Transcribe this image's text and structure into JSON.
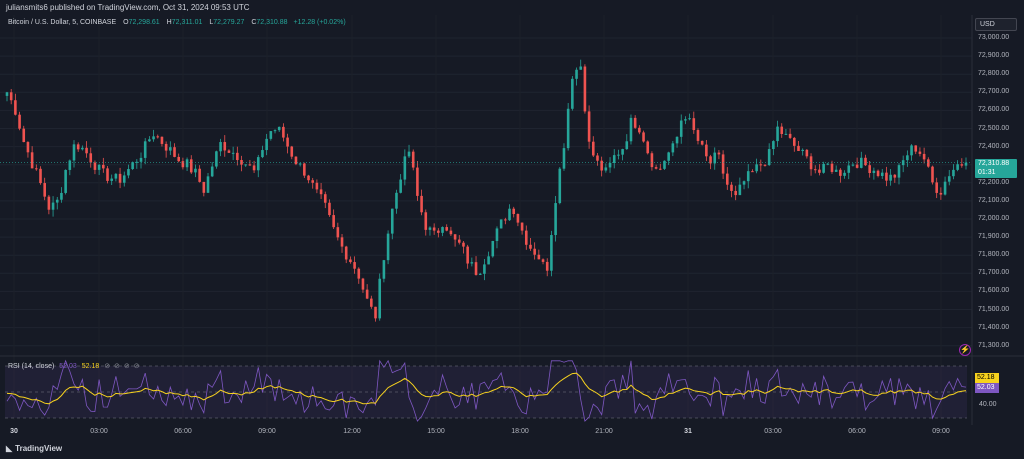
{
  "header": {
    "publisher_text": "juliansmits6 published on TradingView.com, Oct 31, 2024 09:53 UTC"
  },
  "legend": {
    "symbol": "Bitcoin / U.S. Dollar, 5, COINBASE",
    "o_label": "O",
    "o_value": "72,298.61",
    "h_label": "H",
    "h_value": "72,311.01",
    "l_label": "L",
    "l_value": "72,279.27",
    "c_label": "C",
    "c_value": "72,310.88",
    "change": "+12.28 (+0.02%)"
  },
  "price_axis": {
    "currency": "USD",
    "labels": [
      "73,000.00",
      "72,900.00",
      "72,800.00",
      "72,700.00",
      "72,600.00",
      "72,500.00",
      "72,400.00",
      "72,300.00",
      "72,200.00",
      "72,100.00",
      "72,000.00",
      "71,900.00",
      "71,800.00",
      "71,700.00",
      "71,600.00",
      "71,500.00",
      "71,400.00",
      "71,300.00"
    ],
    "current_price": "72,310.88",
    "countdown": "01:31"
  },
  "rsi": {
    "label": "RSI (14, close)",
    "value_rsi": "52.03",
    "value_ma": "52.18",
    "icons": "⊘ ⊘ ⊘ ⊘",
    "badge_ma": "52.18",
    "badge_rsi": "52.03",
    "level_label": "40.00"
  },
  "time_axis": {
    "labels": [
      {
        "text": "30",
        "bold": true
      },
      {
        "text": "03:00",
        "bold": false
      },
      {
        "text": "06:00",
        "bold": false
      },
      {
        "text": "09:00",
        "bold": false
      },
      {
        "text": "12:00",
        "bold": false
      },
      {
        "text": "15:00",
        "bold": false
      },
      {
        "text": "18:00",
        "bold": false
      },
      {
        "text": "21:00",
        "bold": false
      },
      {
        "text": "31",
        "bold": true
      },
      {
        "text": "03:00",
        "bold": false
      },
      {
        "text": "06:00",
        "bold": false
      },
      {
        "text": "09:00",
        "bold": false
      }
    ]
  },
  "footer": {
    "brand": "TradingView"
  },
  "colors": {
    "up": "#26a69a",
    "down": "#ef5350",
    "rsi_line": "#7e57c2",
    "rsi_ma": "#f7d21e",
    "background": "#161a25"
  },
  "chart_data": {
    "type": "candlestick",
    "symbol": "Bitcoin / U.S. Dollar",
    "interval": "5",
    "ylim": [
      71300,
      73050
    ],
    "close_path": [
      72700,
      72600,
      72420,
      72300,
      72180,
      72050,
      72100,
      72300,
      72420,
      72380,
      72320,
      72250,
      72230,
      72210,
      72260,
      72320,
      72380,
      72480,
      72430,
      72380,
      72330,
      72300,
      72250,
      72160,
      72300,
      72420,
      72380,
      72350,
      72300,
      72250,
      72420,
      72500,
      72480,
      72380,
      72300,
      72250,
      72150,
      72080,
      71950,
      71850,
      71780,
      71700,
      71550,
      71450,
      71800,
      72050,
      72250,
      72380,
      72100,
      71950,
      71900,
      72000,
      71880,
      71850,
      71750,
      71700,
      71800,
      71900,
      72000,
      72080,
      71950,
      71850,
      71800,
      71700,
      72100,
      72400,
      72800,
      72850,
      72400,
      72300,
      72250,
      72350,
      72400,
      72550,
      72500,
      72350,
      72250,
      72350,
      72400,
      72600,
      72500,
      72400,
      72300,
      72350,
      72200,
      72100,
      72200,
      72250,
      72300,
      72350,
      72500,
      72450,
      72400,
      72350,
      72300,
      72250,
      72300,
      72250,
      72280,
      72320,
      72300,
      72280,
      72250,
      72220,
      72250,
      72350,
      72400,
      72350,
      72200,
      72150,
      72250,
      72300,
      72310
    ],
    "rsi_values_range": [
      20,
      80
    ]
  }
}
